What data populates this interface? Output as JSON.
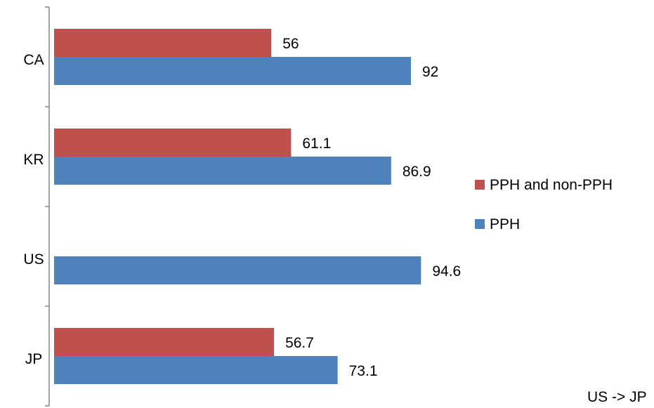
{
  "chart_data": {
    "type": "bar",
    "orientation": "horizontal",
    "categories": [
      "CA",
      "KR",
      "US",
      "JP"
    ],
    "series": [
      {
        "name": "PPH and non-PPH",
        "color": "#C0504D",
        "values": [
          56,
          61.1,
          null,
          56.7
        ]
      },
      {
        "name": "PPH",
        "color": "#4F81BD",
        "values": [
          92,
          86.9,
          94.6,
          73.1
        ]
      }
    ],
    "data_labels": true,
    "legend_position": "right",
    "xlim": [
      0,
      100
    ],
    "grid": false,
    "annotation": "US -> JP"
  }
}
